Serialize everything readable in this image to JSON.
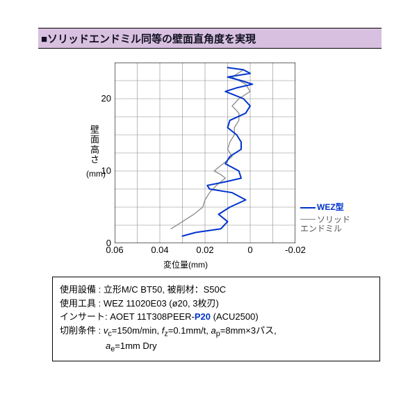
{
  "title": "■ソリッドエンドミル同等の壁面直角度を実現",
  "chart": {
    "type": "line",
    "x_axis": {
      "label": "変位量(mm)",
      "min": -0.02,
      "max": 0.06,
      "step": 0.02,
      "ticks": [
        "0.06",
        "0.04",
        "0.02",
        "0",
        "-0.02"
      ],
      "reversed": true
    },
    "y_axis": {
      "label_lines": [
        "壁",
        "面",
        "高",
        "さ"
      ],
      "unit": "(mm)",
      "min": 0,
      "max": 25,
      "ticks": [
        0,
        10,
        20
      ],
      "grid_step": 2.5
    },
    "background_color": "#ffffff",
    "grid_color": "#888888",
    "border_color": "#000000",
    "series": [
      {
        "name": "WEZ型",
        "color": "#0033cc",
        "line_width": 2.0,
        "points": [
          [
            0.03,
            1.0
          ],
          [
            0.024,
            1.5
          ],
          [
            0.013,
            2.0
          ],
          [
            0.01,
            3.0
          ],
          [
            0.014,
            4.0
          ],
          [
            0.009,
            5.0
          ],
          [
            0.002,
            6.0
          ],
          [
            0.008,
            7.0
          ],
          [
            0.018,
            7.5
          ],
          [
            0.019,
            8.0
          ],
          [
            0.011,
            8.5
          ],
          [
            0.004,
            9.0
          ],
          [
            0.005,
            10.0
          ],
          [
            0.011,
            11.0
          ],
          [
            0.009,
            12.0
          ],
          [
            0.004,
            13.0
          ],
          [
            0.004,
            14.0
          ],
          [
            0.006,
            15.0
          ],
          [
            0.01,
            16.0
          ],
          [
            0.009,
            17.0
          ],
          [
            0.002,
            18.0
          ],
          [
            0.0,
            19.0
          ],
          [
            0.003,
            20.0
          ],
          [
            0.011,
            21.0
          ],
          [
            0.006,
            21.5
          ],
          [
            -0.001,
            22.0
          ],
          [
            0.004,
            22.5
          ],
          [
            0.01,
            23.0
          ],
          [
            0.0,
            23.5
          ],
          [
            0.003,
            24.0
          ],
          [
            0.01,
            24.3
          ]
        ]
      },
      {
        "name": "ソリッド\nエンドミル",
        "color": "#888888",
        "line_width": 1.3,
        "points": [
          [
            0.035,
            2.0
          ],
          [
            0.03,
            3.0
          ],
          [
            0.025,
            4.0
          ],
          [
            0.021,
            5.0
          ],
          [
            0.02,
            6.0
          ],
          [
            0.018,
            7.0
          ],
          [
            0.015,
            8.0
          ],
          [
            0.011,
            9.0
          ],
          [
            0.013,
            9.5
          ],
          [
            0.016,
            10.0
          ],
          [
            0.012,
            11.0
          ],
          [
            0.008,
            12.0
          ],
          [
            0.01,
            13.0
          ],
          [
            0.009,
            14.0
          ],
          [
            0.007,
            15.0
          ],
          [
            0.007,
            16.0
          ],
          [
            0.005,
            17.0
          ],
          [
            0.005,
            18.0
          ],
          [
            0.008,
            19.0
          ],
          [
            0.005,
            20.0
          ],
          [
            0.0,
            21.0
          ],
          [
            0.002,
            22.0
          ],
          [
            0.008,
            23.0
          ],
          [
            0.003,
            24.0
          ]
        ]
      }
    ],
    "legend": {
      "items": [
        {
          "label": "WEZ型",
          "color": "#0033cc",
          "bold": true
        },
        {
          "label": "ソリッド\nエンドミル",
          "color": "#888888",
          "bold": false
        }
      ]
    }
  },
  "info": {
    "line1_label": "使用設備 :",
    "line1_val": "立形M/C BT50, 被削材：S50C",
    "line2_label": "使用工具 :",
    "line2_val": "WEZ 11020E03 (ø20, 3枚刃)",
    "line3_label": "インサート:",
    "line3_val_a": "AOET 11T308PEER-",
    "line3_hl": "P20",
    "line3_val_b": " (ACU2500)",
    "line4_label": "切削条件 :",
    "line4_v1": "=150m/min, ",
    "line4_v2": "=0.1mm/t, ",
    "line4_v3": "=8mm×3パス,",
    "line5_v": "=1mm  Dry"
  }
}
